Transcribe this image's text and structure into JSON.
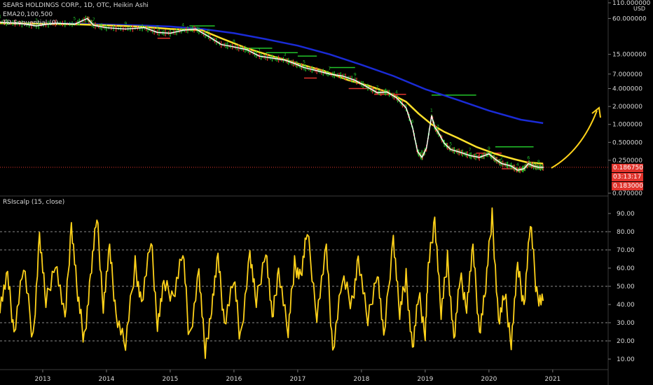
{
  "header": {
    "title": "SEARS HOLDINGS CORP., 1D, OTC, Heikin Ashi",
    "study1": "EMA20,100,500",
    "study2": "TD Sequential (0)",
    "lower_study": "RSIscalp (15, close)"
  },
  "price_tags": {
    "last": "0.186750",
    "countdown": "03:13:17",
    "low": "0.183000"
  },
  "colors": {
    "background": "#000000",
    "ema_long": "#1a2bd6",
    "ema_mid": "#ffe12b",
    "ema_short": "#ffffff",
    "rsi": "#ffd21a",
    "arrow": "#ffd21a",
    "td_green": "#22c32a",
    "td_red": "#e2342d",
    "tag_red": "#e2342d"
  },
  "chart_data": [
    {
      "type": "line",
      "title": "SEARS HOLDINGS CORP., 1D, OTC, Heikin Ashi",
      "y_scale": "log",
      "y_unit": "USD",
      "yticks": [
        "110.000000",
        "60.000000",
        "15.000000",
        "7.000000",
        "4.000000",
        "2.000000",
        "1.000000",
        "0.500000",
        "0.250000",
        "0.070000"
      ],
      "ylim": [
        0.07,
        110
      ],
      "xticks": [
        "2013",
        "2014",
        "2015",
        "2016",
        "2017",
        "2018",
        "2019",
        "2020",
        "2021"
      ],
      "xlim": [
        2012.33,
        2021.87
      ],
      "legend": [
        "EMA20,100,500",
        "TD Sequential (0)"
      ],
      "price": {
        "x": [
          2012.33,
          2012.6,
          2012.9,
          2013.2,
          2013.5,
          2013.7,
          2013.8,
          2014.0,
          2014.3,
          2014.6,
          2014.8,
          2015.0,
          2015.2,
          2015.4,
          2015.6,
          2015.8,
          2016.0,
          2016.2,
          2016.4,
          2016.6,
          2016.8,
          2016.95,
          2017.1,
          2017.3,
          2017.5,
          2017.7,
          2017.9,
          2018.1,
          2018.25,
          2018.4,
          2018.55,
          2018.7,
          2018.8,
          2018.88,
          2018.95,
          2019.02,
          2019.1,
          2019.15,
          2019.2,
          2019.3,
          2019.4,
          2019.55,
          2019.7,
          2019.85,
          2020.0,
          2020.1,
          2020.2,
          2020.35,
          2020.45,
          2020.55,
          2020.62,
          2020.7,
          2020.78,
          2020.86
        ],
        "y": [
          52,
          50,
          45,
          50,
          48,
          60,
          46,
          42,
          40,
          42,
          35,
          34,
          38,
          40,
          30,
          22,
          20,
          18,
          14,
          13,
          12,
          10.5,
          9,
          8,
          7,
          6.5,
          5.5,
          4.2,
          3.4,
          3.5,
          2.8,
          1.9,
          0.9,
          0.35,
          0.28,
          0.4,
          1.4,
          0.9,
          0.75,
          0.48,
          0.38,
          0.34,
          0.3,
          0.28,
          0.32,
          0.26,
          0.22,
          0.2,
          0.17,
          0.18,
          0.22,
          0.2,
          0.19,
          0.19
        ]
      },
      "series": [
        {
          "name": "EMA20,100,500",
          "line": "long",
          "x": [
            2012.33,
            2013.5,
            2014.5,
            2015.0,
            2015.5,
            2016.0,
            2016.5,
            2017.0,
            2017.5,
            2018.0,
            2018.5,
            2019.0,
            2019.5,
            2020.0,
            2020.5,
            2020.85
          ],
          "y": [
            50,
            49,
            46,
            44,
            40,
            34,
            27,
            21,
            15,
            10,
            6.5,
            3.9,
            2.6,
            1.7,
            1.2,
            1.05
          ]
        },
        {
          "name": "EMA20,100,500",
          "line": "mid",
          "x": [
            2012.33,
            2013.5,
            2014.5,
            2015.0,
            2015.5,
            2015.8,
            2016.2,
            2016.6,
            2017.0,
            2017.4,
            2017.8,
            2018.1,
            2018.4,
            2018.7,
            2018.9,
            2019.1,
            2019.3,
            2019.5,
            2019.8,
            2020.1,
            2020.4,
            2020.6,
            2020.85
          ],
          "y": [
            50,
            48,
            44,
            40,
            38,
            28,
            19,
            14,
            10.5,
            8,
            5.5,
            4.5,
            3.5,
            2.4,
            1.5,
            1.0,
            0.75,
            0.6,
            0.42,
            0.32,
            0.26,
            0.23,
            0.22
          ]
        }
      ],
      "annotations": [
        "arrow pointing up-right toward 2.000000"
      ]
    },
    {
      "type": "line",
      "title": "RSIscalp (15, close)",
      "yticks": [
        "90.00",
        "80.00",
        "70.00",
        "60.00",
        "50.00",
        "40.00",
        "30.00",
        "20.00",
        "10.00"
      ],
      "ylim": [
        5,
        95
      ],
      "reference_lines": [
        80,
        70,
        50,
        30,
        20
      ],
      "series": [
        {
          "name": "RSIscalp (15, close)",
          "x": [
            2012.33,
            2012.45,
            2012.55,
            2012.7,
            2012.85,
            2012.95,
            2013.05,
            2013.2,
            2013.35,
            2013.45,
            2013.55,
            2013.65,
            2013.75,
            2013.85,
            2013.95,
            2014.05,
            2014.15,
            2014.3,
            2014.45,
            2014.55,
            2014.7,
            2014.8,
            2014.9,
            2015.05,
            2015.2,
            2015.3,
            2015.45,
            2015.55,
            2015.65,
            2015.75,
            2015.85,
            2016.0,
            2016.1,
            2016.25,
            2016.35,
            2016.5,
            2016.6,
            2016.7,
            2016.85,
            2016.95,
            2017.05,
            2017.15,
            2017.3,
            2017.45,
            2017.55,
            2017.7,
            2017.85,
            2017.95,
            2018.1,
            2018.25,
            2018.35,
            2018.5,
            2018.6,
            2018.7,
            2018.8,
            2018.9,
            2019.0,
            2019.05,
            2019.15,
            2019.25,
            2019.35,
            2019.45,
            2019.55,
            2019.65,
            2019.75,
            2019.85,
            2019.95,
            2020.05,
            2020.15,
            2020.25,
            2020.35,
            2020.45,
            2020.55,
            2020.65,
            2020.75,
            2020.85
          ],
          "y": [
            40,
            55,
            25,
            62,
            20,
            78,
            40,
            65,
            30,
            85,
            45,
            20,
            55,
            88,
            40,
            70,
            35,
            18,
            62,
            40,
            75,
            30,
            50,
            45,
            70,
            20,
            58,
            12,
            40,
            65,
            30,
            55,
            20,
            68,
            40,
            72,
            30,
            60,
            25,
            62,
            55,
            80,
            35,
            70,
            15,
            55,
            40,
            65,
            30,
            60,
            20,
            78,
            35,
            55,
            15,
            45,
            25,
            60,
            88,
            35,
            65,
            20,
            55,
            40,
            70,
            25,
            50,
            90,
            30,
            45,
            20,
            60,
            40,
            86,
            45,
            42
          ]
        }
      ]
    }
  ]
}
